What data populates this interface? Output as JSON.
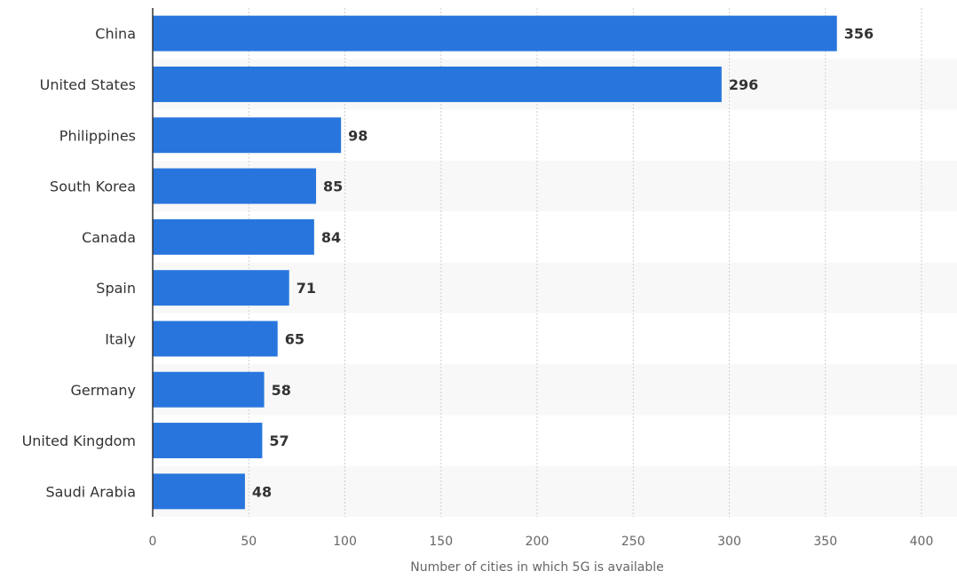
{
  "chart_data": {
    "type": "bar",
    "orientation": "horizontal",
    "categories": [
      "China",
      "United States",
      "Philippines",
      "South Korea",
      "Canada",
      "Spain",
      "Italy",
      "Germany",
      "United Kingdom",
      "Saudi Arabia"
    ],
    "values": [
      356,
      296,
      98,
      85,
      84,
      71,
      65,
      58,
      57,
      48
    ],
    "title": "",
    "xlabel": "Number of cities in which 5G is available",
    "ylabel": "",
    "xlim": [
      0,
      400
    ],
    "xticks": [
      0,
      50,
      100,
      150,
      200,
      250,
      300,
      350,
      400
    ],
    "grid": true,
    "bar_color": "#2876dd",
    "stripe_color": "#f8f8f8",
    "grid_color": "#cfcfcf",
    "axis_color": "#333333"
  }
}
